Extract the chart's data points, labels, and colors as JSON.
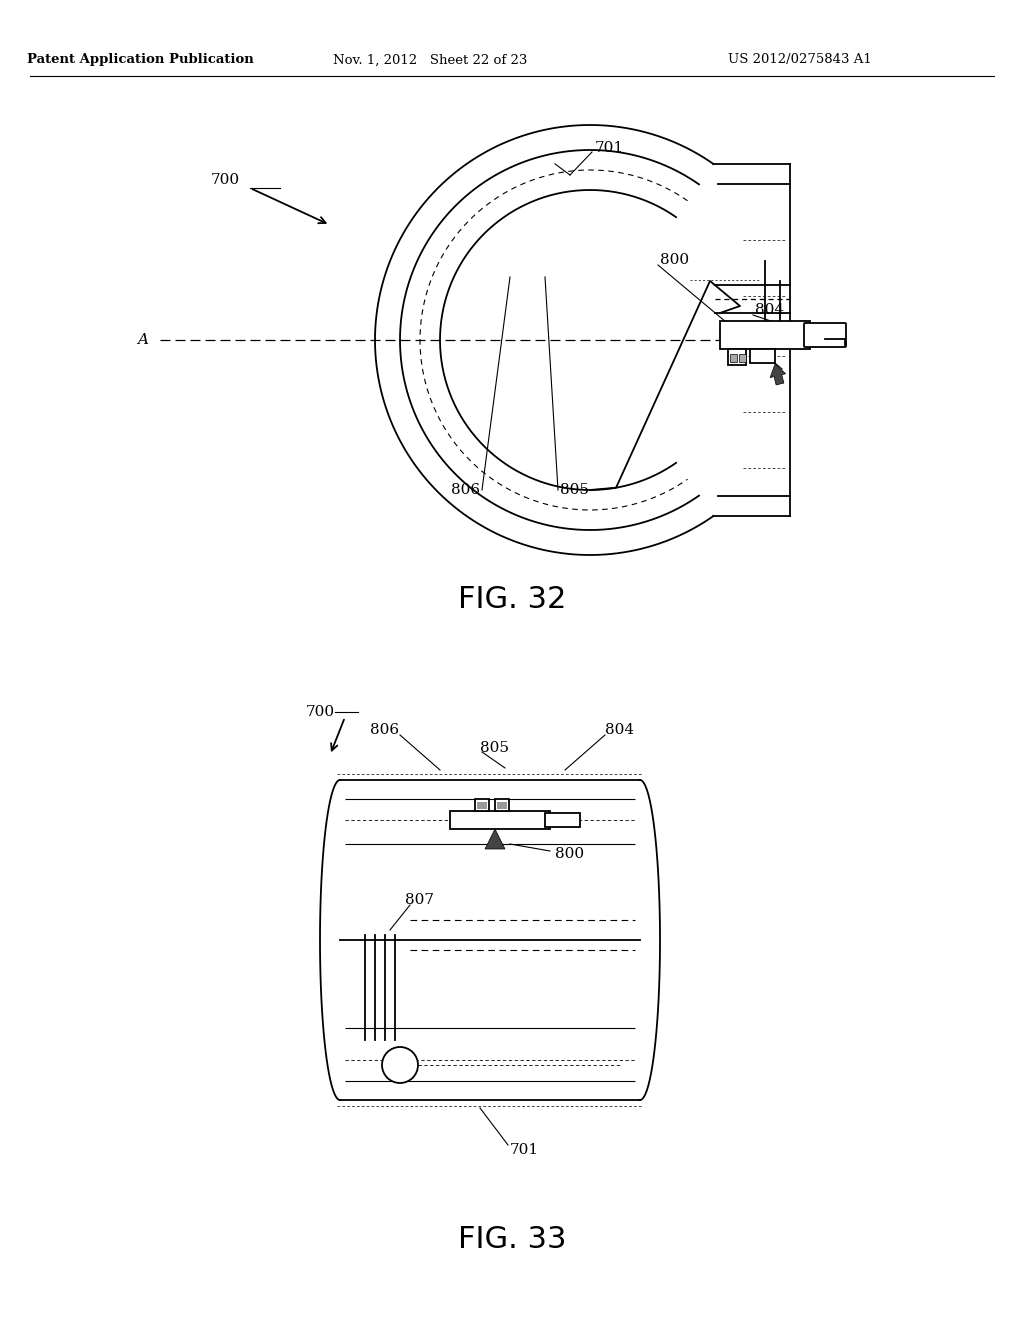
{
  "bg_color": "#ffffff",
  "header_left": "Patent Application Publication",
  "header_mid": "Nov. 1, 2012   Sheet 22 of 23",
  "header_right": "US 2012/0275843 A1",
  "fig32_label": "FIG. 32",
  "fig33_label": "FIG. 33",
  "line_color": "#000000",
  "text_color": "#000000",
  "gray_color": "#888888"
}
